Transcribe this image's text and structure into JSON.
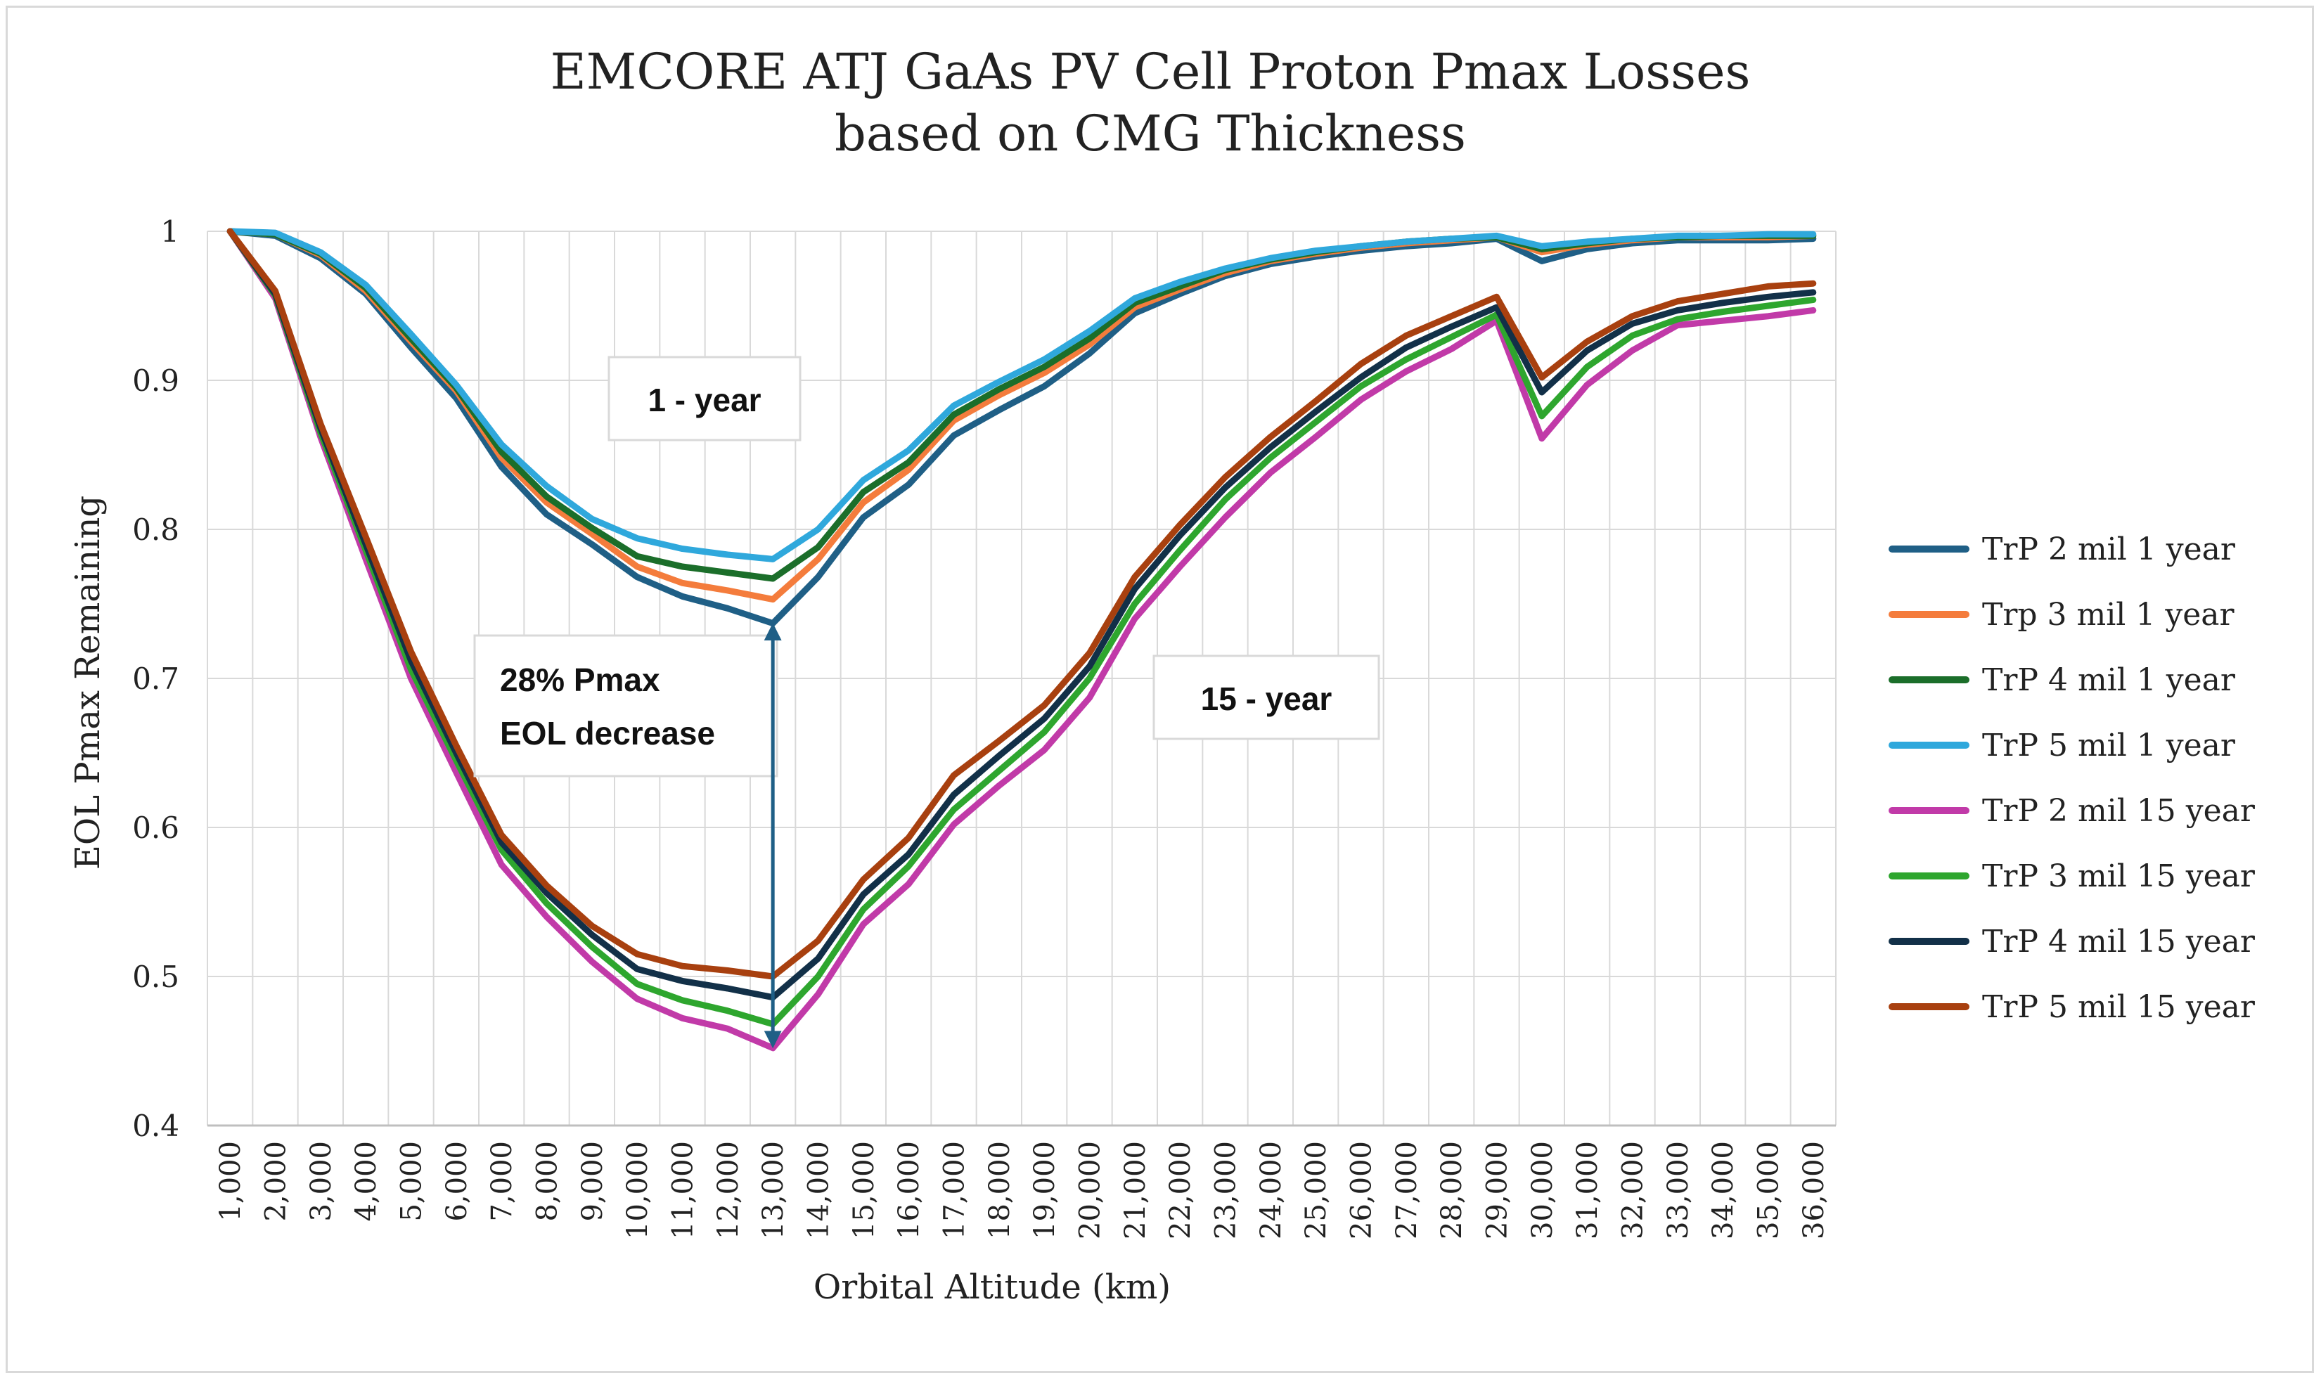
{
  "chart_data": {
    "type": "line",
    "title_line1": "EMCORE ATJ GaAs PV Cell Proton Pmax Losses",
    "title_line2": "based on CMG Thickness",
    "xlabel": "Orbital Altitude (km)",
    "ylabel": "EOL Pmax Remaining",
    "ylim": [
      0.4,
      1.0
    ],
    "yticks": [
      "0.4",
      "0.5",
      "0.6",
      "0.7",
      "0.8",
      "0.9",
      "1"
    ],
    "grid": true,
    "legend_position": "right",
    "categories": [
      "1,000",
      "2,000",
      "3,000",
      "4,000",
      "5,000",
      "6,000",
      "7,000",
      "8,000",
      "9,000",
      "10,000",
      "11,000",
      "12,000",
      "13,000",
      "14,000",
      "15,000",
      "16,000",
      "17,000",
      "18,000",
      "19,000",
      "20,000",
      "21,000",
      "22,000",
      "23,000",
      "24,000",
      "25,000",
      "26,000",
      "27,000",
      "28,000",
      "29,000",
      "30,000",
      "31,000",
      "32,000",
      "33,000",
      "34,000",
      "35,000",
      "36,000"
    ],
    "series": [
      {
        "name": "TrP 2 mil 1 year",
        "color": "#1f5f86",
        "values": [
          1.0,
          0.997,
          0.982,
          0.958,
          0.922,
          0.888,
          0.842,
          0.81,
          0.79,
          0.768,
          0.755,
          0.747,
          0.737,
          0.768,
          0.808,
          0.83,
          0.863,
          0.88,
          0.896,
          0.918,
          0.945,
          0.958,
          0.97,
          0.978,
          0.983,
          0.987,
          0.99,
          0.992,
          0.995,
          0.98,
          0.988,
          0.992,
          0.994,
          0.994,
          0.994,
          0.995
        ]
      },
      {
        "name": "Trp 3 mil 1 year",
        "color": "#f47c3c",
        "values": [
          1.0,
          0.998,
          0.984,
          0.96,
          0.926,
          0.893,
          0.848,
          0.818,
          0.797,
          0.775,
          0.764,
          0.759,
          0.753,
          0.78,
          0.818,
          0.84,
          0.873,
          0.89,
          0.905,
          0.924,
          0.949,
          0.961,
          0.972,
          0.98,
          0.985,
          0.989,
          0.992,
          0.994,
          0.996,
          0.986,
          0.991,
          0.994,
          0.996,
          0.996,
          0.996,
          0.997
        ]
      },
      {
        "name": "TrP 4 mil 1 year",
        "color": "#1b6e2a",
        "values": [
          1.0,
          0.998,
          0.985,
          0.962,
          0.928,
          0.895,
          0.852,
          0.822,
          0.801,
          0.782,
          0.775,
          0.771,
          0.767,
          0.788,
          0.825,
          0.845,
          0.877,
          0.894,
          0.909,
          0.928,
          0.952,
          0.963,
          0.974,
          0.981,
          0.986,
          0.99,
          0.993,
          0.995,
          0.996,
          0.988,
          0.992,
          0.995,
          0.996,
          0.997,
          0.997,
          0.997
        ]
      },
      {
        "name": "TrP 5 mil 1 year",
        "color": "#2fa8dc",
        "values": [
          1.0,
          0.999,
          0.986,
          0.964,
          0.931,
          0.897,
          0.857,
          0.829,
          0.807,
          0.794,
          0.787,
          0.783,
          0.78,
          0.8,
          0.833,
          0.853,
          0.883,
          0.899,
          0.914,
          0.933,
          0.955,
          0.966,
          0.975,
          0.982,
          0.987,
          0.99,
          0.993,
          0.995,
          0.997,
          0.99,
          0.993,
          0.995,
          0.997,
          0.997,
          0.998,
          0.998
        ]
      },
      {
        "name": "TrP 2 mil 15 year",
        "color": "#c13aa8",
        "values": [
          1.0,
          0.955,
          0.862,
          0.78,
          0.7,
          0.637,
          0.575,
          0.54,
          0.51,
          0.485,
          0.472,
          0.465,
          0.452,
          0.488,
          0.535,
          0.562,
          0.602,
          0.628,
          0.652,
          0.687,
          0.74,
          0.775,
          0.808,
          0.838,
          0.862,
          0.887,
          0.906,
          0.921,
          0.94,
          0.861,
          0.897,
          0.92,
          0.937,
          0.94,
          0.943,
          0.947
        ]
      },
      {
        "name": "TrP 3 mil 15 year",
        "color": "#2ea62e",
        "values": [
          1.0,
          0.957,
          0.865,
          0.786,
          0.706,
          0.645,
          0.585,
          0.549,
          0.52,
          0.495,
          0.484,
          0.477,
          0.468,
          0.5,
          0.545,
          0.574,
          0.612,
          0.638,
          0.664,
          0.7,
          0.75,
          0.786,
          0.82,
          0.848,
          0.872,
          0.896,
          0.914,
          0.929,
          0.944,
          0.876,
          0.909,
          0.93,
          0.941,
          0.946,
          0.95,
          0.954
        ]
      },
      {
        "name": "TrP 4 mil 15 year",
        "color": "#123048",
        "values": [
          1.0,
          0.958,
          0.868,
          0.79,
          0.712,
          0.65,
          0.59,
          0.556,
          0.528,
          0.505,
          0.497,
          0.492,
          0.486,
          0.512,
          0.555,
          0.582,
          0.622,
          0.648,
          0.673,
          0.708,
          0.76,
          0.796,
          0.828,
          0.855,
          0.879,
          0.902,
          0.922,
          0.936,
          0.949,
          0.892,
          0.92,
          0.938,
          0.947,
          0.952,
          0.956,
          0.959
        ]
      },
      {
        "name": "TrP 5 mil 15 year",
        "color": "#a8400f",
        "values": [
          1.0,
          0.96,
          0.871,
          0.795,
          0.718,
          0.655,
          0.595,
          0.561,
          0.534,
          0.515,
          0.507,
          0.504,
          0.5,
          0.524,
          0.565,
          0.593,
          0.635,
          0.658,
          0.682,
          0.717,
          0.768,
          0.803,
          0.835,
          0.862,
          0.886,
          0.911,
          0.93,
          0.943,
          0.956,
          0.902,
          0.926,
          0.943,
          0.953,
          0.958,
          0.963,
          0.965
        ]
      }
    ],
    "annotations": {
      "one_year_box": "1 - year",
      "fifteen_year_box": "15 - year",
      "decrease_line1": "28% Pmax",
      "decrease_line2": "EOL decrease",
      "arrow_at_category": "13,000",
      "arrow_from_value": 0.452,
      "arrow_to_value": 0.737
    }
  }
}
